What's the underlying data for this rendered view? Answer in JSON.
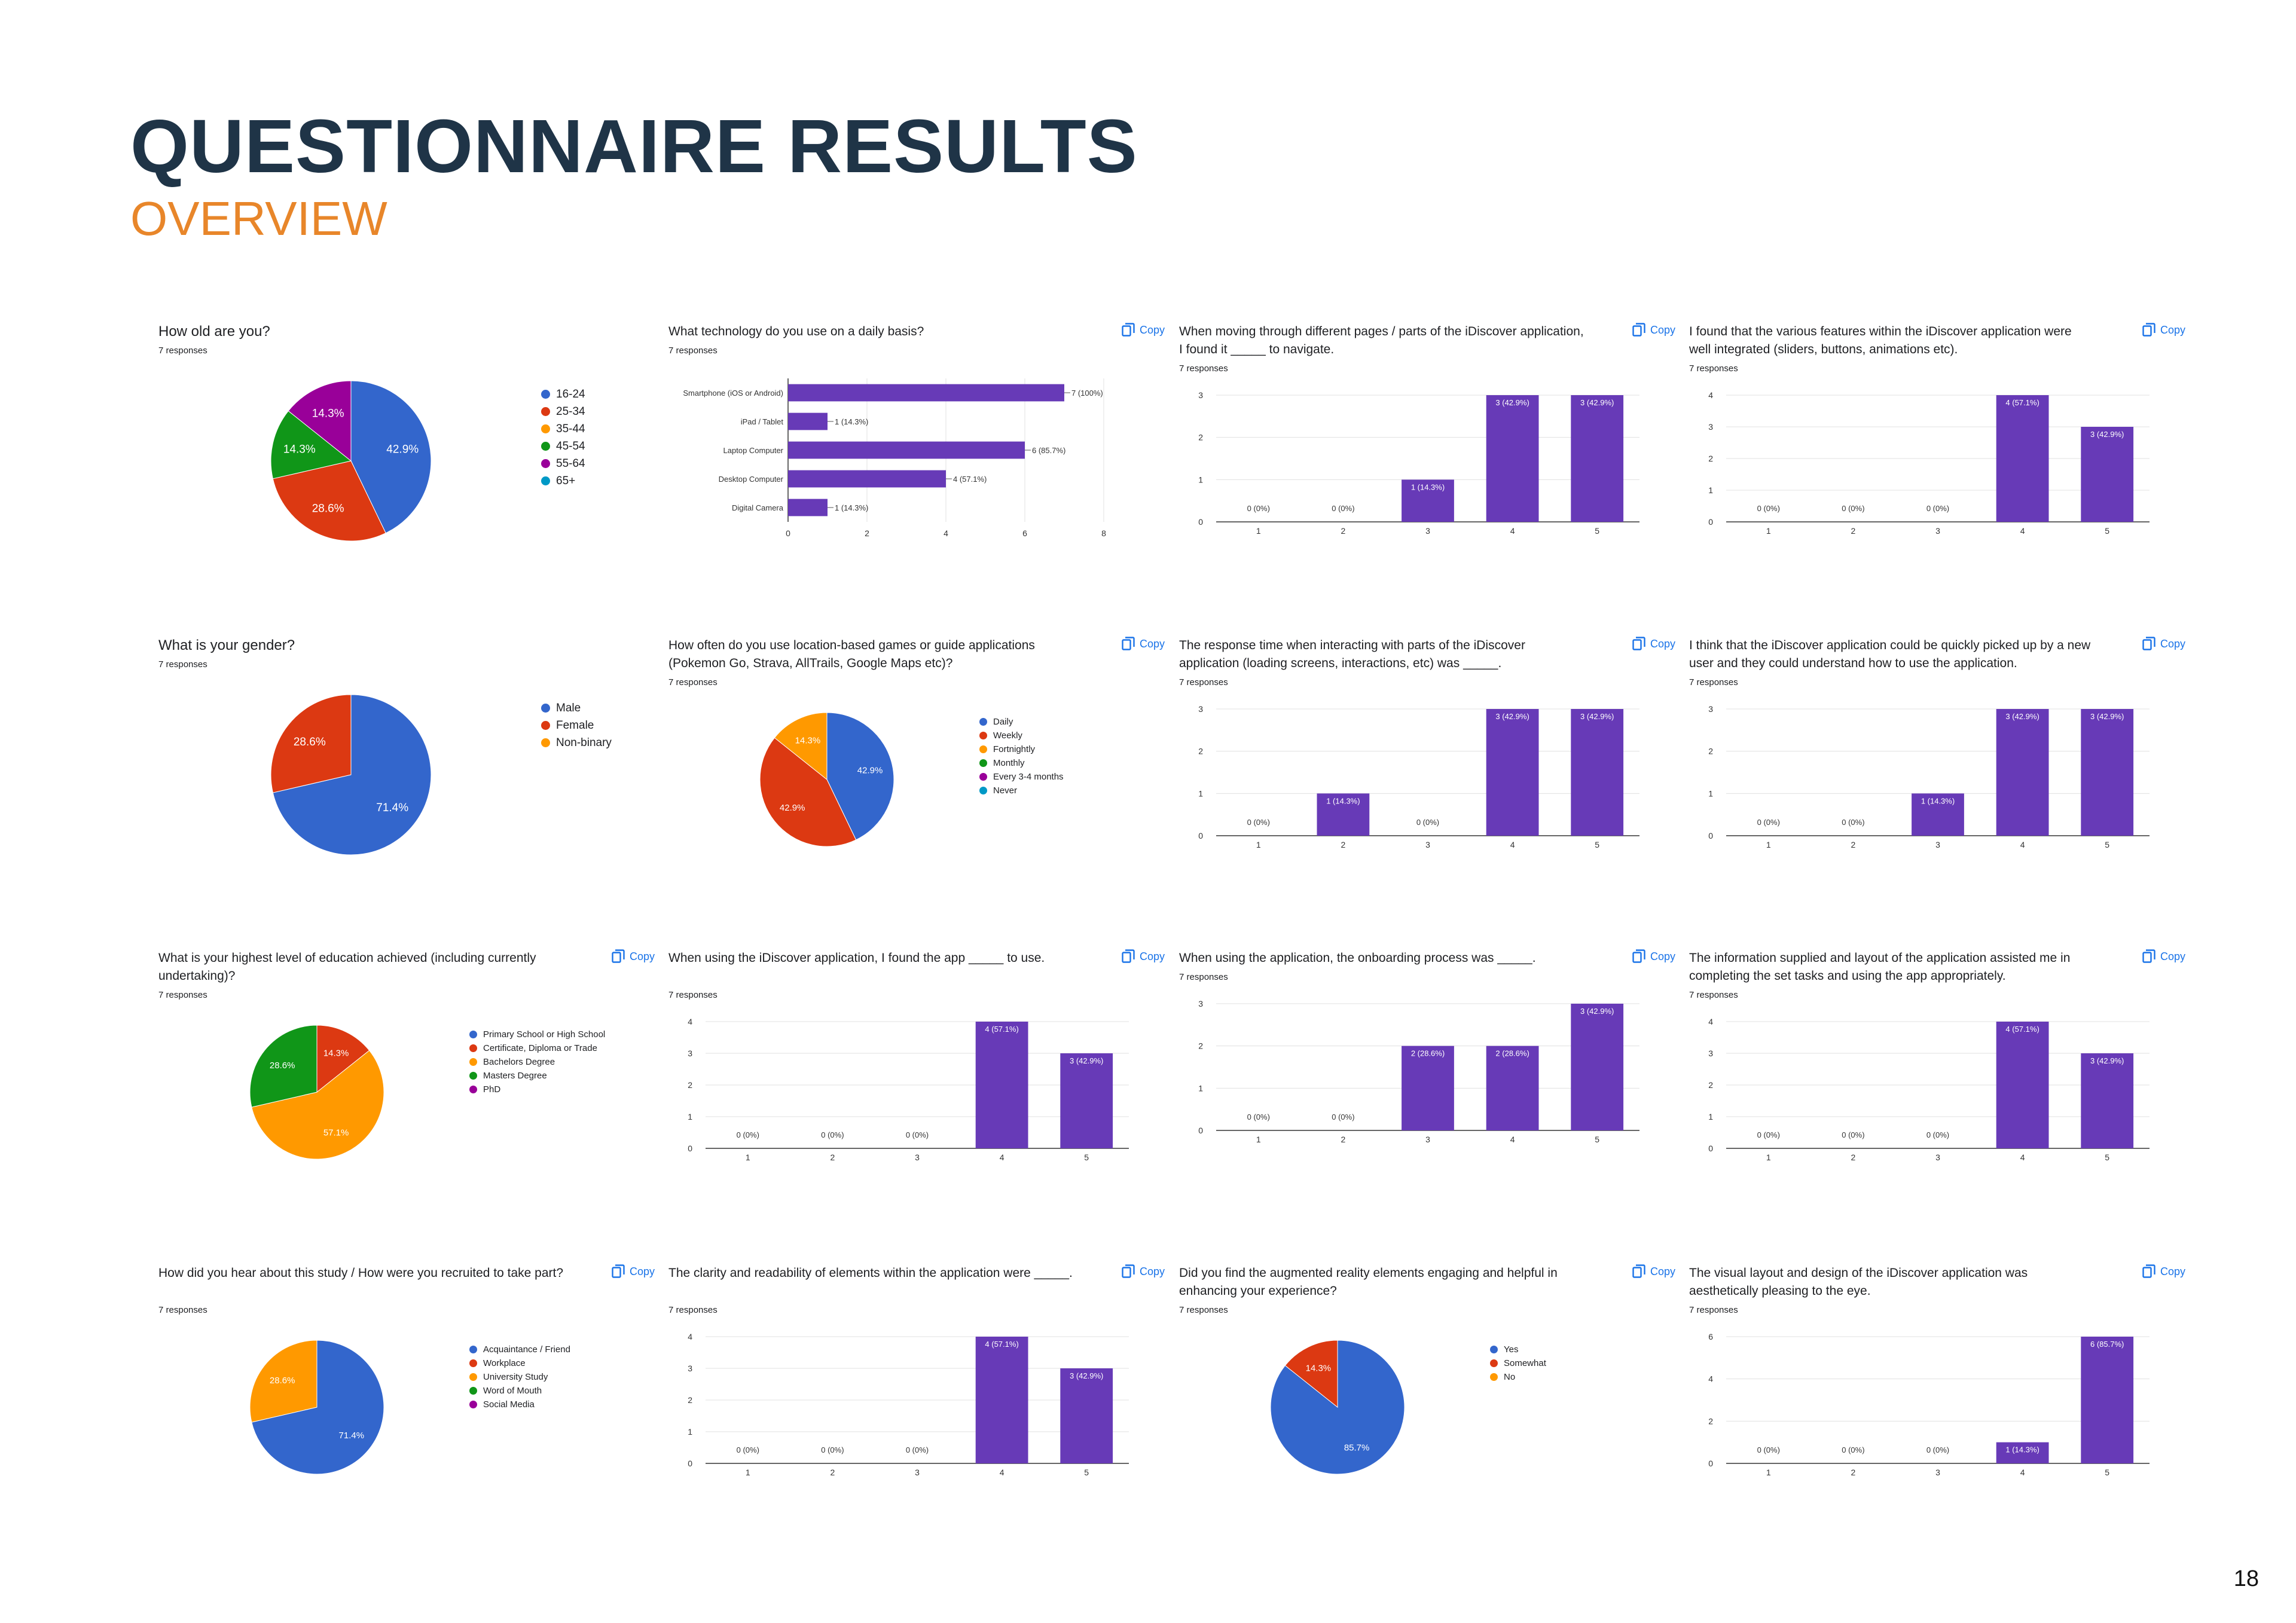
{
  "page": {
    "title": "QUESTIONNAIRE RESULTS",
    "subtitle": "OVERVIEW",
    "page_number": "18"
  },
  "common": {
    "copy_label": "Copy",
    "copy_icon": "copy-icon",
    "bar_color": "#673ab7"
  },
  "palette": [
    "#3366cc",
    "#dc3912",
    "#ff9900",
    "#109618",
    "#990099",
    "#0099c6"
  ],
  "chart_data": [
    {
      "id": "age",
      "type": "pie",
      "title": "How old are you?",
      "responses": "7 responses",
      "copy": false,
      "big": true,
      "legend": [
        "16-24",
        "25-34",
        "35-44",
        "45-54",
        "55-64",
        "65+"
      ],
      "values": [
        42.9,
        28.6,
        0,
        14.3,
        14.3,
        0
      ],
      "slice_labels": [
        "42.9%",
        "28.6%",
        "",
        "14.3%",
        "14.3%",
        ""
      ]
    },
    {
      "id": "technology",
      "type": "bar-horizontal",
      "title": "What technology do you use on a daily basis?",
      "responses": "7 responses",
      "copy": true,
      "categories": [
        "Smartphone (iOS or Android)",
        "iPad / Tablet",
        "Laptop Computer",
        "Desktop Computer",
        "Digital Camera"
      ],
      "values": [
        7,
        1,
        6,
        4,
        1
      ],
      "value_labels": [
        "7 (100%)",
        "1 (14.3%)",
        "6 (85.7%)",
        "4 (57.1%)",
        "1 (14.3%)"
      ],
      "xticks": [
        "0",
        "2",
        "4",
        "6",
        "8"
      ],
      "xlim": [
        0,
        8
      ]
    },
    {
      "id": "navigate",
      "type": "bar",
      "title": "When moving through different pages / parts of the iDiscover application, I found it _____ to navigate.",
      "responses": "7 responses",
      "copy": true,
      "categories": [
        "1",
        "2",
        "3",
        "4",
        "5"
      ],
      "values": [
        0,
        0,
        1,
        3,
        3
      ],
      "value_labels": [
        "0 (0%)",
        "0 (0%)",
        "1 (14.3%)",
        "3 (42.9%)",
        "3 (42.9%)"
      ],
      "yticks": [
        "0",
        "1",
        "2",
        "3"
      ],
      "ylim": [
        0,
        3
      ]
    },
    {
      "id": "integrated",
      "type": "bar",
      "title": "I found that the various features within the iDiscover application were well integrated (sliders, buttons, animations etc).",
      "responses": "7 responses",
      "copy": true,
      "categories": [
        "1",
        "2",
        "3",
        "4",
        "5"
      ],
      "values": [
        0,
        0,
        0,
        4,
        3
      ],
      "value_labels": [
        "0 (0%)",
        "0 (0%)",
        "0 (0%)",
        "4 (57.1%)",
        "3 (42.9%)"
      ],
      "yticks": [
        "0",
        "1",
        "2",
        "3",
        "4"
      ],
      "ylim": [
        0,
        4
      ]
    },
    {
      "id": "gender",
      "type": "pie",
      "title": "What is your gender?",
      "responses": "7 responses",
      "copy": false,
      "big": true,
      "legend": [
        "Male",
        "Female",
        "Non-binary"
      ],
      "values": [
        71.4,
        28.6,
        0
      ],
      "slice_labels": [
        "71.4%",
        "28.6%",
        ""
      ]
    },
    {
      "id": "location_games",
      "type": "pie",
      "title": "How often do you use location-based games or guide applications (Pokemon Go, Strava, AllTrails, Google Maps etc)?",
      "responses": "7 responses",
      "copy": true,
      "legend": [
        "Daily",
        "Weekly",
        "Fortnightly",
        "Monthly",
        "Every 3-4 months",
        "Never"
      ],
      "values": [
        42.9,
        42.9,
        14.3,
        0,
        0,
        0
      ],
      "slice_labels": [
        "42.9%",
        "42.9%",
        "14.3%",
        "",
        "",
        ""
      ]
    },
    {
      "id": "response_time",
      "type": "bar",
      "title": "The response time when interacting with parts of the iDiscover application (loading screens, interactions, etc) was _____.",
      "responses": "7 responses",
      "copy": true,
      "categories": [
        "1",
        "2",
        "3",
        "4",
        "5"
      ],
      "values": [
        0,
        1,
        0,
        3,
        3
      ],
      "value_labels": [
        "0 (0%)",
        "1 (14.3%)",
        "0 (0%)",
        "3 (42.9%)",
        "3 (42.9%)"
      ],
      "yticks": [
        "0",
        "1",
        "2",
        "3"
      ],
      "ylim": [
        0,
        3
      ]
    },
    {
      "id": "picked_up",
      "type": "bar",
      "title": "I think that the iDiscover application could be quickly picked up by a new user and they could understand how to use the application.",
      "responses": "7 responses",
      "copy": true,
      "categories": [
        "1",
        "2",
        "3",
        "4",
        "5"
      ],
      "values": [
        0,
        0,
        1,
        3,
        3
      ],
      "value_labels": [
        "0 (0%)",
        "0 (0%)",
        "1 (14.3%)",
        "3 (42.9%)",
        "3 (42.9%)"
      ],
      "yticks": [
        "0",
        "1",
        "2",
        "3"
      ],
      "ylim": [
        0,
        3
      ]
    },
    {
      "id": "education",
      "type": "pie",
      "title": "What is your highest level of education achieved (including currently undertaking)?",
      "responses": "7 responses",
      "copy": true,
      "legend": [
        "Primary School or High School",
        "Certificate, Diploma or Trade",
        "Bachelors Degree",
        "Masters Degree",
        "PhD"
      ],
      "values": [
        0,
        14.3,
        57.1,
        28.6,
        0
      ],
      "slice_labels": [
        "",
        "14.3%",
        "57.1%",
        "28.6%",
        ""
      ]
    },
    {
      "id": "app_use",
      "type": "bar",
      "title": "When using the iDiscover application, I found the app _____ to use.",
      "responses": "7 responses",
      "copy": true,
      "categories": [
        "1",
        "2",
        "3",
        "4",
        "5"
      ],
      "values": [
        0,
        0,
        0,
        4,
        3
      ],
      "value_labels": [
        "0 (0%)",
        "0 (0%)",
        "0 (0%)",
        "4 (57.1%)",
        "3 (42.9%)"
      ],
      "yticks": [
        "0",
        "1",
        "2",
        "3",
        "4"
      ],
      "ylim": [
        0,
        4
      ]
    },
    {
      "id": "onboarding",
      "type": "bar",
      "title": "When using the application, the onboarding process was _____.",
      "responses": "7 responses",
      "copy": true,
      "categories": [
        "1",
        "2",
        "3",
        "4",
        "5"
      ],
      "values": [
        0,
        0,
        2,
        2,
        3
      ],
      "value_labels": [
        "0 (0%)",
        "0 (0%)",
        "2 (28.6%)",
        "2 (28.6%)",
        "3 (42.9%)"
      ],
      "yticks": [
        "0",
        "1",
        "2",
        "3"
      ],
      "ylim": [
        0,
        3
      ]
    },
    {
      "id": "information_layout",
      "type": "bar",
      "title": "The information supplied and layout of the application assisted me in completing the set tasks and using the app appropriately.",
      "responses": "7 responses",
      "copy": true,
      "categories": [
        "1",
        "2",
        "3",
        "4",
        "5"
      ],
      "values": [
        0,
        0,
        0,
        4,
        3
      ],
      "value_labels": [
        "0 (0%)",
        "0 (0%)",
        "0 (0%)",
        "4 (57.1%)",
        "3 (42.9%)"
      ],
      "yticks": [
        "0",
        "1",
        "2",
        "3",
        "4"
      ],
      "ylim": [
        0,
        4
      ]
    },
    {
      "id": "recruitment",
      "type": "pie",
      "title": "How did you hear about this study / How were you recruited to take part?",
      "responses": "7 responses",
      "copy": true,
      "legend": [
        "Acquaintance / Friend",
        "Workplace",
        "University Study",
        "Word of Mouth",
        "Social Media"
      ],
      "values": [
        71.4,
        0,
        28.6,
        0,
        0
      ],
      "slice_labels": [
        "71.4%",
        "",
        "28.6%",
        "",
        ""
      ]
    },
    {
      "id": "clarity",
      "type": "bar",
      "title": "The clarity and readability of elements within the application were _____.",
      "responses": "7 responses",
      "copy": true,
      "categories": [
        "1",
        "2",
        "3",
        "4",
        "5"
      ],
      "values": [
        0,
        0,
        0,
        4,
        3
      ],
      "value_labels": [
        "0 (0%)",
        "0 (0%)",
        "0 (0%)",
        "4 (57.1%)",
        "3 (42.9%)"
      ],
      "yticks": [
        "0",
        "1",
        "2",
        "3",
        "4"
      ],
      "ylim": [
        0,
        4
      ]
    },
    {
      "id": "augmented_reality",
      "type": "pie",
      "title": "Did you find the augmented reality elements engaging and helpful in enhancing your experience?",
      "responses": "7 responses",
      "copy": true,
      "legend": [
        "Yes",
        "Somewhat",
        "No"
      ],
      "values": [
        85.7,
        14.3,
        0
      ],
      "slice_labels": [
        "85.7%",
        "14.3%",
        ""
      ]
    },
    {
      "id": "visual_layout",
      "type": "bar",
      "title": "The visual layout and design of the iDiscover application was aesthetically pleasing to the eye.",
      "responses": "7 responses",
      "copy": true,
      "categories": [
        "1",
        "2",
        "3",
        "4",
        "5"
      ],
      "values": [
        0,
        0,
        0,
        1,
        6
      ],
      "value_labels": [
        "0 (0%)",
        "0 (0%)",
        "0 (0%)",
        "1 (14.3%)",
        "6 (85.7%)"
      ],
      "yticks": [
        "0",
        "2",
        "4",
        "6"
      ],
      "ylim": [
        0,
        6
      ]
    }
  ]
}
